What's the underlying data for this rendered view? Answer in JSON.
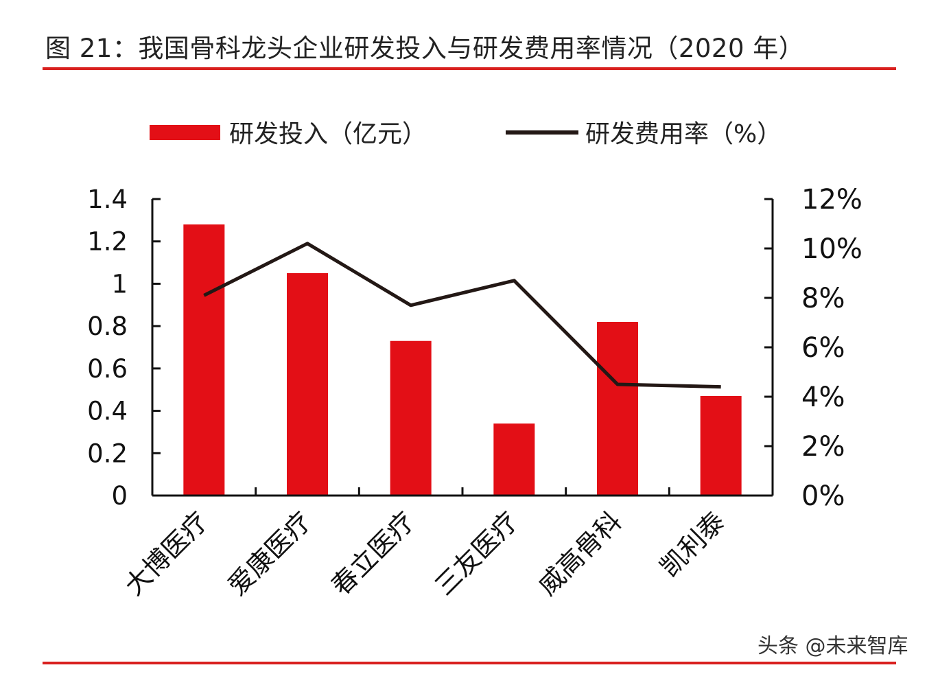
{
  "title": "图 21：我国骨科龙头企业研发投入与研发费用率情况（2020 年）",
  "watermark": "头条 @未来智库",
  "colors": {
    "bar": "#e30f16",
    "line": "#231815",
    "rule": "#d9201f"
  },
  "chart_data": {
    "type": "bar+line",
    "categories": [
      "大博医疗",
      "爱康医疗",
      "春立医疗",
      "三友医疗",
      "威高骨科",
      "凯利泰"
    ],
    "series": [
      {
        "name": "研发投入（亿元）",
        "type": "bar",
        "axis": "left",
        "values": [
          1.28,
          1.05,
          0.73,
          0.34,
          0.82,
          0.47
        ]
      },
      {
        "name": "研发费用率（%）",
        "type": "line",
        "axis": "right",
        "values": [
          8.1,
          10.2,
          7.7,
          8.7,
          4.5,
          4.4
        ]
      }
    ],
    "y_left": {
      "range": [
        0,
        1.4
      ],
      "ticks": [
        "0",
        "0.2",
        "0.4",
        "0.6",
        "0.8",
        "1",
        "1.2",
        "1.4"
      ]
    },
    "y_right": {
      "range": [
        0,
        12
      ],
      "ticks": [
        "0%",
        "2%",
        "4%",
        "6%",
        "8%",
        "10%",
        "12%"
      ]
    },
    "legend": "top",
    "grid": false
  }
}
